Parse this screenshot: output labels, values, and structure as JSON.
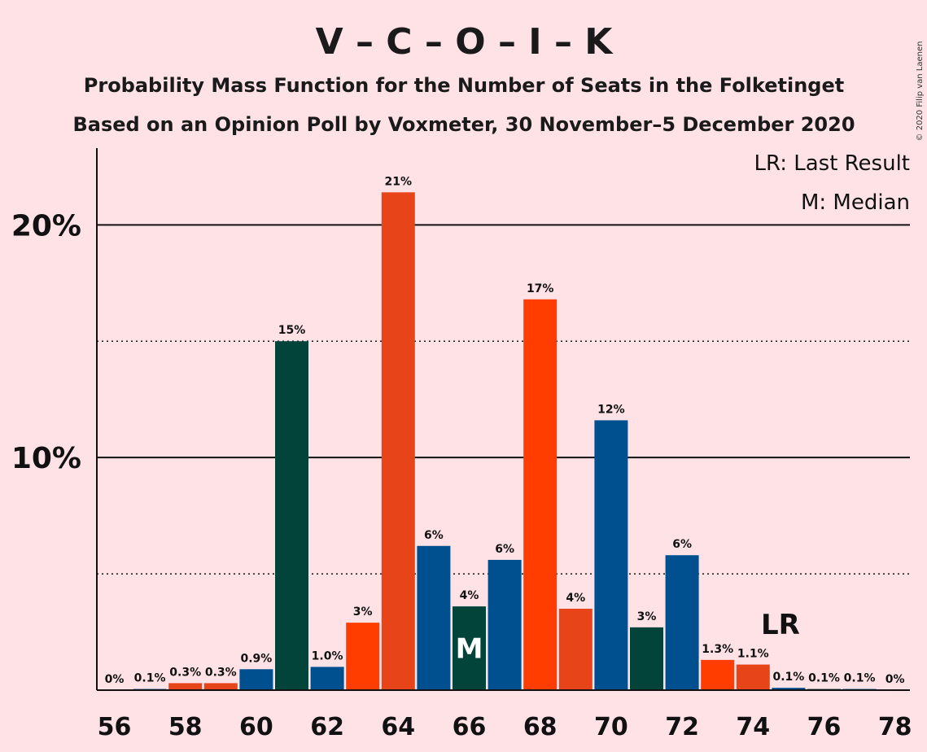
{
  "chart_data": {
    "type": "bar",
    "title": "V – C – O – I – K",
    "subtitle_lines": [
      "Probability Mass Function for the Number of Seats in the Folketinget",
      "Based on an Opinion Poll by Voxmeter, 30 November–5 December 2020"
    ],
    "copyright": "© 2020 Filip van Laenen",
    "legend": {
      "position": "top-right",
      "entries": [
        "LR: Last Result",
        "M: Median"
      ]
    },
    "x": [
      56,
      57,
      58,
      59,
      60,
      61,
      62,
      63,
      64,
      65,
      66,
      67,
      68,
      69,
      70,
      71,
      72,
      73,
      74,
      75,
      76,
      77,
      78
    ],
    "x_tick_labels": [
      "56",
      "58",
      "60",
      "62",
      "64",
      "66",
      "68",
      "70",
      "72",
      "74",
      "76",
      "78"
    ],
    "values": [
      0,
      0.05,
      0.3,
      0.3,
      0.9,
      15.0,
      1.0,
      2.9,
      21.4,
      6.2,
      3.6,
      5.6,
      16.8,
      3.5,
      11.6,
      2.7,
      5.8,
      1.3,
      1.1,
      0.1,
      0.05,
      0.05,
      0
    ],
    "data_labels": [
      "0%",
      "0.1%",
      "0.3%",
      "0.3%",
      "0.9%",
      "15%",
      "1.0%",
      "3%",
      "21%",
      "6%",
      "4%",
      "6%",
      "17%",
      "4%",
      "12%",
      "3%",
      "6%",
      "1.3%",
      "1.1%",
      "0.1%",
      "0.1%",
      "0.1%",
      "0%"
    ],
    "bar_colors": [
      "#E8441A",
      "#00508F",
      "#E8441A",
      "#E8441A",
      "#00508F",
      "#02443A",
      "#00508F",
      "#FF3D00",
      "#E8441A",
      "#00508F",
      "#02443A",
      "#00508F",
      "#FF3D00",
      "#E8441A",
      "#00508F",
      "#02443A",
      "#00508F",
      "#FF3D00",
      "#E8441A",
      "#00508F",
      "#02443A",
      "#00508F",
      "#FF3D00"
    ],
    "y_ticks": [
      {
        "value": 10,
        "label": "10%"
      },
      {
        "value": 20,
        "label": "20%"
      }
    ],
    "y_minor_gridlines": [
      5,
      15
    ],
    "ylim": [
      0,
      23.3
    ],
    "last_result": {
      "seat": 75,
      "label": "LR"
    },
    "median": {
      "seat": 66,
      "label": "M"
    },
    "grid": true
  }
}
